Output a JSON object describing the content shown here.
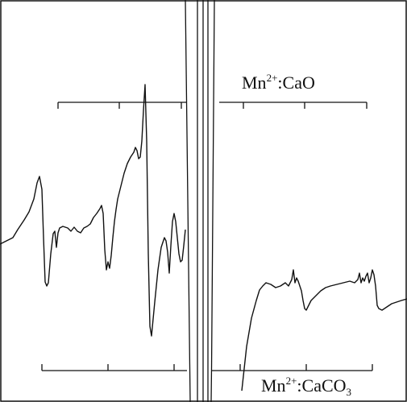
{
  "chart_data": {
    "type": "line",
    "title": "",
    "xlabel": "",
    "ylabel": "",
    "grid": false,
    "legend": "none",
    "stroke_color": "#111111",
    "annotations": {
      "top_scale": {
        "ion": "Mn",
        "charge": "2+",
        "host": "CaO",
        "host_subscript": ""
      },
      "bottom_scale": {
        "ion": "Mn",
        "charge": "2+",
        "host": "CaCO",
        "host_subscript": "3"
      }
    },
    "series": [
      {
        "x": [
          0,
          8,
          16,
          22,
          30,
          36,
          42,
          46,
          49,
          52,
          54,
          56,
          58,
          60,
          63,
          66,
          68,
          70,
          72,
          74,
          78,
          84,
          88,
          92,
          96,
          100,
          104,
          108,
          112,
          116,
          120,
          124,
          126,
          128,
          130,
          132,
          134,
          136,
          138,
          140,
          142,
          144,
          146,
          150,
          154,
          158,
          162,
          166,
          168,
          170,
          172,
          174,
          176,
          178,
          180,
          182,
          184,
          186,
          188,
          192,
          196,
          200,
          204,
          206,
          208,
          210,
          212,
          214,
          216,
          218,
          220,
          222,
          224,
          226,
          228,
          230
        ],
        "y": [
          -48,
          -44,
          -40,
          -30,
          -18,
          -8,
          8,
          28,
          36,
          20,
          -40,
          -95,
          -100,
          -96,
          -60,
          -35,
          -32,
          -52,
          -34,
          -28,
          -26,
          -28,
          -32,
          -27,
          -32,
          -34,
          -28,
          -26,
          -23,
          -15,
          -10,
          -4,
          0,
          -10,
          -55,
          -80,
          -70,
          -78,
          -62,
          -40,
          -20,
          -5,
          8,
          24,
          40,
          52,
          60,
          66,
          72,
          68,
          58,
          60,
          80,
          118,
          150,
          80,
          -60,
          -150,
          -162,
          -120,
          -80,
          -52,
          -40,
          -44,
          -58,
          -84,
          -50,
          -20,
          -10,
          -20,
          -40,
          -60,
          -70,
          -68,
          -50,
          -30
        ]
      },
      {
        "x": [
          300,
          306,
          312,
          318,
          322,
          326,
          330,
          336,
          342,
          348,
          354,
          358,
          362,
          364,
          366,
          368,
          370,
          372,
          374,
          376,
          378,
          380,
          382,
          386,
          392,
          398,
          404,
          410,
          418,
          426,
          434,
          440,
          444,
          446,
          448,
          450,
          452,
          454,
          456,
          458,
          460,
          462,
          464,
          466,
          468,
          470,
          474,
          480,
          486,
          492,
          498,
          505
        ],
        "y": [
          -230,
          -175,
          -140,
          -118,
          -105,
          -100,
          -96,
          -98,
          -102,
          -100,
          -96,
          -100,
          -92,
          -80,
          -96,
          -90,
          -94,
          -100,
          -106,
          -118,
          -128,
          -130,
          -126,
          -118,
          -112,
          -106,
          -102,
          -100,
          -98,
          -96,
          -94,
          -96,
          -92,
          -84,
          -96,
          -90,
          -94,
          -88,
          -84,
          -96,
          -90,
          -80,
          -86,
          -100,
          -124,
          -128,
          -130,
          -126,
          -122,
          -120,
          -118,
          -116
        ]
      }
    ]
  }
}
